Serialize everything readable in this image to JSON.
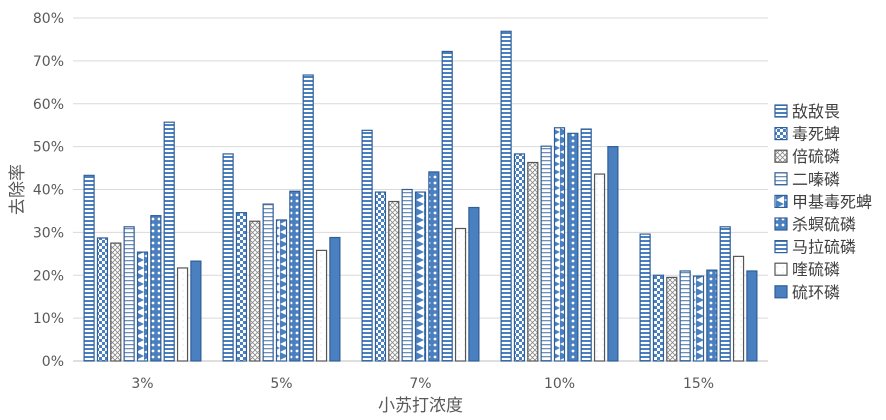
{
  "chart_data": {
    "type": "bar",
    "title": "",
    "xlabel": "小苏打浓度",
    "ylabel": "去除率",
    "categories": [
      "3%",
      "5%",
      "7%",
      "10%",
      "15%"
    ],
    "ylim": [
      0,
      80
    ],
    "yticks": [
      "0%",
      "10%",
      "20%",
      "30%",
      "40%",
      "50%",
      "60%",
      "70%",
      "80%"
    ],
    "ytick_values": [
      0,
      10,
      20,
      30,
      40,
      50,
      60,
      70,
      80
    ],
    "grid": true,
    "legend_position": "right",
    "series": [
      {
        "name": "敌敌畏",
        "values": [
          43.3,
          48.3,
          53.8,
          76.9,
          29.6
        ],
        "pattern": "grid-h",
        "color": "#4a7fc0"
      },
      {
        "name": "毒死蜱",
        "values": [
          28.7,
          34.6,
          39.4,
          48.3,
          20.0
        ],
        "pattern": "checker",
        "color": "#4a7fc0"
      },
      {
        "name": "倍硫磷",
        "values": [
          27.5,
          32.6,
          37.2,
          46.3,
          19.5
        ],
        "pattern": "cross",
        "color": "#6b6b6b"
      },
      {
        "name": "二嗪磷",
        "values": [
          31.3,
          36.6,
          40.0,
          50.1,
          21.0
        ],
        "pattern": "stripe-h",
        "color": "#4a7fc0"
      },
      {
        "name": "甲基毒死蜱",
        "values": [
          25.4,
          32.9,
          39.4,
          54.4,
          19.8
        ],
        "pattern": "diamond",
        "color": "#4a7fc0"
      },
      {
        "name": "杀螟硫磷",
        "values": [
          33.9,
          39.6,
          44.1,
          53.1,
          21.2
        ],
        "pattern": "dots",
        "color": "#4a7fc0"
      },
      {
        "name": "马拉硫磷",
        "values": [
          55.7,
          66.7,
          72.2,
          54.1,
          31.3
        ],
        "pattern": "grid-h",
        "color": "#4a7fc0"
      },
      {
        "name": "喹硫磷",
        "values": [
          21.7,
          25.8,
          30.9,
          43.6,
          24.4
        ],
        "pattern": "light",
        "color": "#6b6b6b"
      },
      {
        "name": "硫环磷",
        "values": [
          23.3,
          28.8,
          35.8,
          50.0,
          21.0
        ],
        "pattern": "solid",
        "color": "#4a7fc0"
      }
    ]
  }
}
